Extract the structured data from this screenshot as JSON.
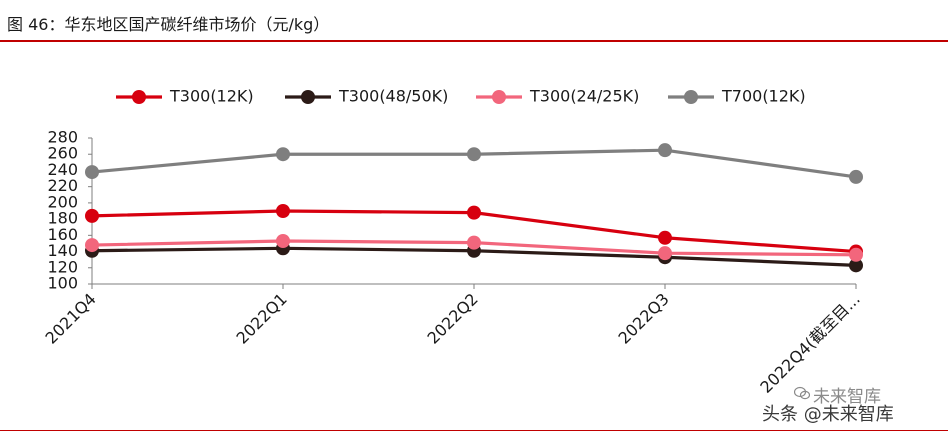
{
  "figure": {
    "title": "图 46：华东地区国产碳纤维市场价（元/kg）"
  },
  "chart_data": {
    "type": "line",
    "title": "图 46：华东地区国产碳纤维市场价（元/kg）",
    "xlabel": "",
    "ylabel": "",
    "categories": [
      "2021Q4",
      "2022Q1",
      "2022Q2",
      "2022Q3",
      "2022Q4(截至目..."
    ],
    "ylim": [
      100,
      280
    ],
    "yticks": [
      100,
      120,
      140,
      160,
      180,
      200,
      220,
      240,
      260,
      280
    ],
    "grid": false,
    "legend_position": "top",
    "series": [
      {
        "name": "T300(12K)",
        "color": "#d7000f",
        "values": [
          184,
          190,
          188,
          157,
          140
        ]
      },
      {
        "name": "T300(48/50K)",
        "color": "#2b1b17",
        "values": [
          141,
          144,
          141,
          133,
          123
        ]
      },
      {
        "name": "T300(24/25K)",
        "color": "#f2667c",
        "values": [
          148,
          153,
          151,
          138,
          136
        ]
      },
      {
        "name": "T700(12K)",
        "color": "#7f7f7f",
        "values": [
          238,
          260,
          260,
          265,
          232
        ]
      }
    ]
  },
  "watermark": {
    "top_text": "未来智库",
    "bottom_text": "头条 @未来智库"
  }
}
